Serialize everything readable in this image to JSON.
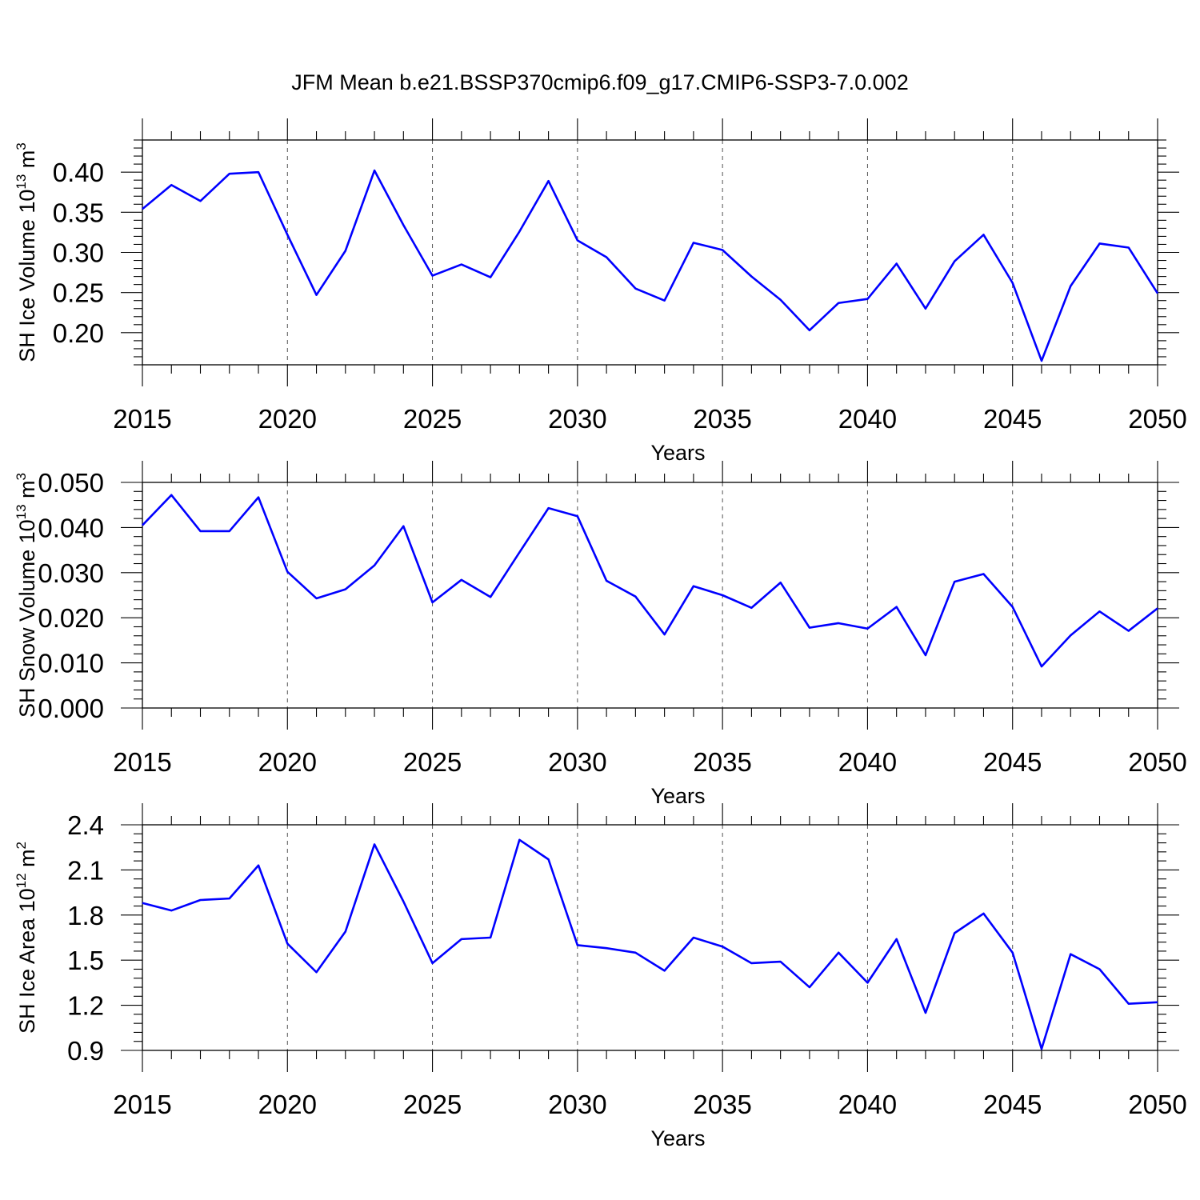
{
  "title": "JFM Mean b.e21.BSSP370cmip6.f09_g17.CMIP6-SSP3-7.0.002",
  "line_color": "#0000ff",
  "chart_data": [
    {
      "type": "line",
      "xlabel": "Years",
      "ylabel": {
        "base": "SH Ice Volume 10",
        "exp": "13",
        "unit": " m",
        "unit_exp": "3"
      },
      "xlim": [
        2015,
        2050
      ],
      "ylim": [
        0.16,
        0.44
      ],
      "xticks": [
        2015,
        2020,
        2025,
        2030,
        2035,
        2040,
        2045,
        2050
      ],
      "yticks": [
        0.2,
        0.25,
        0.3,
        0.35,
        0.4
      ],
      "ytick_labels": [
        "0.20",
        "0.25",
        "0.30",
        "0.35",
        "0.40"
      ],
      "grid": "dashed vertical at major x ticks",
      "series": [
        {
          "x": [
            2015,
            2016,
            2017,
            2018,
            2019,
            2020,
            2021,
            2022,
            2023,
            2024,
            2025,
            2026,
            2027,
            2028,
            2029,
            2030,
            2031,
            2032,
            2033,
            2034,
            2035,
            2036,
            2037,
            2038,
            2039,
            2040,
            2041,
            2042,
            2043,
            2044,
            2045,
            2046,
            2047,
            2048,
            2049,
            2050
          ],
          "values": [
            0.354,
            0.384,
            0.364,
            0.398,
            0.4,
            0.322,
            0.247,
            0.302,
            0.402,
            0.334,
            0.271,
            0.285,
            0.269,
            0.326,
            0.389,
            0.315,
            0.294,
            0.255,
            0.24,
            0.312,
            0.303,
            0.27,
            0.241,
            0.203,
            0.237,
            0.242,
            0.286,
            0.23,
            0.289,
            0.322,
            0.262,
            0.165,
            0.258,
            0.311,
            0.306,
            0.249
          ]
        }
      ]
    },
    {
      "type": "line",
      "xlabel": "Years",
      "ylabel": {
        "base": "SH Snow Volume 10",
        "exp": "13",
        "unit": " m",
        "unit_exp": "3"
      },
      "xlim": [
        2015,
        2050
      ],
      "ylim": [
        0.0,
        0.05
      ],
      "xticks": [
        2015,
        2020,
        2025,
        2030,
        2035,
        2040,
        2045,
        2050
      ],
      "yticks": [
        0.0,
        0.01,
        0.02,
        0.03,
        0.04,
        0.05
      ],
      "ytick_labels": [
        "0.000",
        "0.010",
        "0.020",
        "0.030",
        "0.040",
        "0.050"
      ],
      "grid": "dashed vertical at major x ticks",
      "series": [
        {
          "x": [
            2015,
            2016,
            2017,
            2018,
            2019,
            2020,
            2021,
            2022,
            2023,
            2024,
            2025,
            2026,
            2027,
            2028,
            2029,
            2030,
            2031,
            2032,
            2033,
            2034,
            2035,
            2036,
            2037,
            2038,
            2039,
            2040,
            2041,
            2042,
            2043,
            2044,
            2045,
            2046,
            2047,
            2048,
            2049,
            2050
          ],
          "values": [
            0.0405,
            0.0472,
            0.0392,
            0.0392,
            0.0467,
            0.0302,
            0.0243,
            0.0263,
            0.0316,
            0.0403,
            0.0234,
            0.0284,
            0.0246,
            0.0345,
            0.0443,
            0.0425,
            0.0282,
            0.0247,
            0.0163,
            0.027,
            0.025,
            0.0222,
            0.0278,
            0.0178,
            0.0188,
            0.0176,
            0.0224,
            0.0117,
            0.028,
            0.0297,
            0.0224,
            0.0092,
            0.0161,
            0.0214,
            0.0171,
            0.0221
          ]
        }
      ]
    },
    {
      "type": "line",
      "xlabel": "Years",
      "ylabel": {
        "base": "SH Ice Area 10",
        "exp": "12",
        "unit": " m",
        "unit_exp": "2"
      },
      "xlim": [
        2015,
        2050
      ],
      "ylim": [
        0.9,
        2.4
      ],
      "xticks": [
        2015,
        2020,
        2025,
        2030,
        2035,
        2040,
        2045,
        2050
      ],
      "yticks": [
        0.9,
        1.2,
        1.5,
        1.8,
        2.1,
        2.4
      ],
      "ytick_labels": [
        "0.9",
        "1.2",
        "1.5",
        "1.8",
        "2.1",
        "2.4"
      ],
      "grid": "dashed vertical at major x ticks",
      "series": [
        {
          "x": [
            2015,
            2016,
            2017,
            2018,
            2019,
            2020,
            2021,
            2022,
            2023,
            2024,
            2025,
            2026,
            2027,
            2028,
            2029,
            2030,
            2031,
            2032,
            2033,
            2034,
            2035,
            2036,
            2037,
            2038,
            2039,
            2040,
            2041,
            2042,
            2043,
            2044,
            2045,
            2046,
            2047,
            2048,
            2049,
            2050
          ],
          "values": [
            1.88,
            1.83,
            1.9,
            1.91,
            2.13,
            1.61,
            1.42,
            1.69,
            2.27,
            1.89,
            1.48,
            1.64,
            1.65,
            2.3,
            2.17,
            1.6,
            1.58,
            1.55,
            1.43,
            1.65,
            1.59,
            1.48,
            1.49,
            1.32,
            1.55,
            1.35,
            1.64,
            1.15,
            1.68,
            1.81,
            1.55,
            0.91,
            1.54,
            1.44,
            1.21,
            1.22
          ]
        }
      ]
    }
  ]
}
